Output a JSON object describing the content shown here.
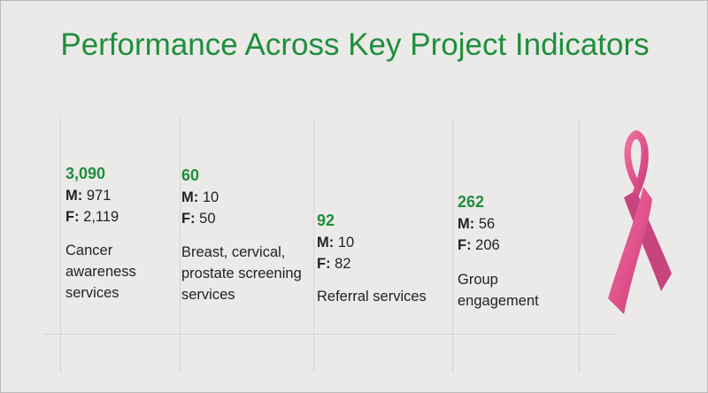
{
  "title": "Performance Across Key Project Indicators",
  "colors": {
    "accent": "#1e8f3c",
    "background": "#ebeae8",
    "ribbon": "#e25a8f"
  },
  "ribbon_icon": "pink-ribbon-icon",
  "indicators": [
    {
      "total": "3,090",
      "m_label": "M:",
      "m_value": "971",
      "f_label": "F:",
      "f_value": "2,119",
      "description": [
        "Cancer",
        "awareness",
        "services"
      ]
    },
    {
      "total": "60",
      "m_label": "M:",
      "m_value": "10",
      "f_label": "F:",
      "f_value": "50",
      "description": [
        "Breast, cervical,",
        "prostate screening",
        "services"
      ]
    },
    {
      "total": "92",
      "m_label": "M:",
      "m_value": "10",
      "f_label": "F:",
      "f_value": "82",
      "description": [
        "Referral services"
      ]
    },
    {
      "total": "262",
      "m_label": "M:",
      "m_value": "56",
      "f_label": "F:",
      "f_value": "206",
      "description": [
        "Group",
        "engagement"
      ]
    }
  ]
}
